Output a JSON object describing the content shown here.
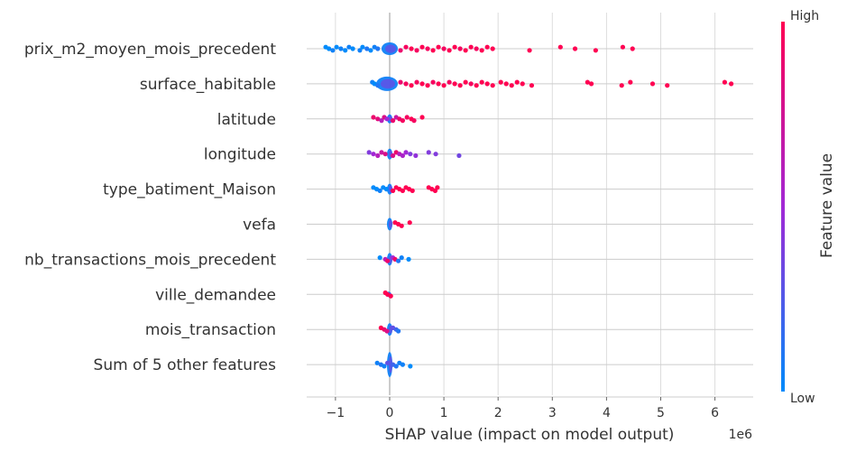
{
  "chart_data": {
    "type": "scatter",
    "subtype": "shap-beeswarm",
    "title": "",
    "xlabel": "SHAP value (impact on model output)",
    "x_offset_text": "1e6",
    "xlim": [
      -1.55,
      6.7
    ],
    "xticks": [
      -1,
      0,
      1,
      2,
      3,
      4,
      5,
      6
    ],
    "xtick_labels": [
      "−1",
      "0",
      "1",
      "2",
      "3",
      "4",
      "5",
      "6"
    ],
    "grid": true,
    "colorbar": {
      "label": "Feature value",
      "high_label": "High",
      "low_label": "Low",
      "high_color": "#ff0052",
      "low_color": "#008bfb"
    },
    "features": [
      {
        "name": "prix_m2_moyen_mois_precedent",
        "core_min": -0.15,
        "core_max": 0.15,
        "core_height": 14,
        "points": [
          {
            "x": -1.18,
            "v": 0.0
          },
          {
            "x": -1.12,
            "v": 0.0
          },
          {
            "x": -1.05,
            "v": 0.05
          },
          {
            "x": -0.98,
            "v": 0.0
          },
          {
            "x": -0.9,
            "v": 0.05
          },
          {
            "x": -0.82,
            "v": 0.0
          },
          {
            "x": -0.75,
            "v": 0.05
          },
          {
            "x": -0.68,
            "v": 0.0
          },
          {
            "x": -0.55,
            "v": 0.05
          },
          {
            "x": -0.5,
            "v": 0.0
          },
          {
            "x": -0.42,
            "v": 0.1
          },
          {
            "x": -0.35,
            "v": 0.0
          },
          {
            "x": -0.28,
            "v": 0.05
          },
          {
            "x": -0.22,
            "v": 0.1
          },
          {
            "x": 0.2,
            "v": 0.9
          },
          {
            "x": 0.3,
            "v": 0.95
          },
          {
            "x": 0.4,
            "v": 1.0
          },
          {
            "x": 0.5,
            "v": 0.95
          },
          {
            "x": 0.6,
            "v": 1.0
          },
          {
            "x": 0.7,
            "v": 0.95
          },
          {
            "x": 0.8,
            "v": 1.0
          },
          {
            "x": 0.9,
            "v": 1.0
          },
          {
            "x": 1.0,
            "v": 0.95
          },
          {
            "x": 1.1,
            "v": 1.0
          },
          {
            "x": 1.2,
            "v": 1.0
          },
          {
            "x": 1.3,
            "v": 0.95
          },
          {
            "x": 1.4,
            "v": 1.0
          },
          {
            "x": 1.5,
            "v": 1.0
          },
          {
            "x": 1.6,
            "v": 0.95
          },
          {
            "x": 1.7,
            "v": 1.0
          },
          {
            "x": 1.8,
            "v": 1.0
          },
          {
            "x": 1.9,
            "v": 1.0
          },
          {
            "x": 2.58,
            "v": 1.0
          },
          {
            "x": 3.15,
            "v": 1.0
          },
          {
            "x": 3.42,
            "v": 1.0
          },
          {
            "x": 3.8,
            "v": 1.0
          },
          {
            "x": 4.3,
            "v": 1.0
          },
          {
            "x": 4.48,
            "v": 1.0
          }
        ]
      },
      {
        "name": "surface_habitable",
        "core_min": -0.25,
        "core_max": 0.15,
        "core_height": 16,
        "points": [
          {
            "x": -0.32,
            "v": 0.05
          },
          {
            "x": -0.28,
            "v": 0.0
          },
          {
            "x": -0.22,
            "v": 0.1
          },
          {
            "x": 0.2,
            "v": 0.9
          },
          {
            "x": 0.3,
            "v": 0.95
          },
          {
            "x": 0.4,
            "v": 1.0
          },
          {
            "x": 0.5,
            "v": 0.95
          },
          {
            "x": 0.6,
            "v": 1.0
          },
          {
            "x": 0.7,
            "v": 1.0
          },
          {
            "x": 0.8,
            "v": 0.95
          },
          {
            "x": 0.9,
            "v": 1.0
          },
          {
            "x": 1.0,
            "v": 1.0
          },
          {
            "x": 1.1,
            "v": 0.95
          },
          {
            "x": 1.2,
            "v": 1.0
          },
          {
            "x": 1.3,
            "v": 1.0
          },
          {
            "x": 1.4,
            "v": 1.0
          },
          {
            "x": 1.5,
            "v": 0.95
          },
          {
            "x": 1.6,
            "v": 1.0
          },
          {
            "x": 1.7,
            "v": 1.0
          },
          {
            "x": 1.8,
            "v": 1.0
          },
          {
            "x": 1.9,
            "v": 1.0
          },
          {
            "x": 2.05,
            "v": 1.0
          },
          {
            "x": 2.15,
            "v": 1.0
          },
          {
            "x": 2.25,
            "v": 1.0
          },
          {
            "x": 2.35,
            "v": 1.0
          },
          {
            "x": 2.45,
            "v": 1.0
          },
          {
            "x": 2.62,
            "v": 1.0
          },
          {
            "x": 3.65,
            "v": 1.0
          },
          {
            "x": 3.72,
            "v": 1.0
          },
          {
            "x": 4.28,
            "v": 1.0
          },
          {
            "x": 4.44,
            "v": 1.0
          },
          {
            "x": 4.85,
            "v": 1.0
          },
          {
            "x": 5.12,
            "v": 1.0
          },
          {
            "x": 6.18,
            "v": 1.0
          },
          {
            "x": 6.3,
            "v": 1.0
          }
        ]
      },
      {
        "name": "latitude",
        "core_min": -0.03,
        "core_max": 0.03,
        "core_height": 10,
        "points": [
          {
            "x": -0.3,
            "v": 0.9
          },
          {
            "x": -0.22,
            "v": 0.85
          },
          {
            "x": -0.15,
            "v": 0.6
          },
          {
            "x": -0.1,
            "v": 0.8
          },
          {
            "x": -0.05,
            "v": 0.5
          },
          {
            "x": 0.06,
            "v": 0.9
          },
          {
            "x": 0.12,
            "v": 0.7
          },
          {
            "x": 0.18,
            "v": 0.9
          },
          {
            "x": 0.24,
            "v": 0.95
          },
          {
            "x": 0.32,
            "v": 0.95
          },
          {
            "x": 0.4,
            "v": 1.0
          },
          {
            "x": 0.45,
            "v": 0.95
          },
          {
            "x": 0.6,
            "v": 1.0
          }
        ]
      },
      {
        "name": "longitude",
        "core_min": -0.03,
        "core_max": 0.03,
        "core_height": 12,
        "points": [
          {
            "x": -0.38,
            "v": 0.4
          },
          {
            "x": -0.3,
            "v": 0.5
          },
          {
            "x": -0.22,
            "v": 0.6
          },
          {
            "x": -0.15,
            "v": 0.7
          },
          {
            "x": -0.08,
            "v": 0.8
          },
          {
            "x": 0.06,
            "v": 0.8
          },
          {
            "x": 0.12,
            "v": 0.9
          },
          {
            "x": 0.18,
            "v": 0.6
          },
          {
            "x": 0.24,
            "v": 0.55
          },
          {
            "x": 0.3,
            "v": 0.5
          },
          {
            "x": 0.38,
            "v": 0.4
          },
          {
            "x": 0.48,
            "v": 0.45
          },
          {
            "x": 0.72,
            "v": 0.4
          },
          {
            "x": 0.85,
            "v": 0.4
          },
          {
            "x": 1.28,
            "v": 0.35
          }
        ]
      },
      {
        "name": "type_batiment_Maison",
        "core_min": -0.02,
        "core_max": 0.02,
        "core_height": 12,
        "points": [
          {
            "x": -0.3,
            "v": 0.0
          },
          {
            "x": -0.24,
            "v": 0.0
          },
          {
            "x": -0.18,
            "v": 0.05
          },
          {
            "x": -0.12,
            "v": 0.0
          },
          {
            "x": -0.06,
            "v": 0.0
          },
          {
            "x": 0.06,
            "v": 1.0
          },
          {
            "x": 0.12,
            "v": 1.0
          },
          {
            "x": 0.18,
            "v": 1.0
          },
          {
            "x": 0.24,
            "v": 1.0
          },
          {
            "x": 0.3,
            "v": 1.0
          },
          {
            "x": 0.36,
            "v": 1.0
          },
          {
            "x": 0.42,
            "v": 1.0
          },
          {
            "x": 0.72,
            "v": 1.0
          },
          {
            "x": 0.78,
            "v": 1.0
          },
          {
            "x": 0.84,
            "v": 1.0
          },
          {
            "x": 0.88,
            "v": 1.0
          }
        ]
      },
      {
        "name": "vefa",
        "core_min": -0.02,
        "core_max": 0.02,
        "core_height": 14,
        "points": [
          {
            "x": 0.1,
            "v": 1.0
          },
          {
            "x": 0.16,
            "v": 1.0
          },
          {
            "x": 0.22,
            "v": 1.0
          },
          {
            "x": 0.37,
            "v": 1.0
          }
        ]
      },
      {
        "name": "nb_transactions_mois_precedent",
        "core_min": -0.03,
        "core_max": 0.03,
        "core_height": 14,
        "points": [
          {
            "x": -0.18,
            "v": 0.0
          },
          {
            "x": -0.08,
            "v": 0.6
          },
          {
            "x": -0.04,
            "v": 0.9
          },
          {
            "x": 0.06,
            "v": 0.5
          },
          {
            "x": 0.1,
            "v": 0.9
          },
          {
            "x": 0.16,
            "v": 0.1
          },
          {
            "x": 0.22,
            "v": 0.05
          },
          {
            "x": 0.35,
            "v": 0.0
          }
        ]
      },
      {
        "name": "ville_demandee",
        "core_min": -0.06,
        "core_max": 0.02,
        "core_height": 6,
        "points": [
          {
            "x": -0.08,
            "v": 1.0
          },
          {
            "x": -0.04,
            "v": 1.0
          },
          {
            "x": 0.02,
            "v": 1.0
          }
        ]
      },
      {
        "name": "mois_transaction",
        "core_min": -0.03,
        "core_max": 0.03,
        "core_height": 14,
        "points": [
          {
            "x": -0.16,
            "v": 1.0
          },
          {
            "x": -0.1,
            "v": 0.9
          },
          {
            "x": -0.05,
            "v": 0.8
          },
          {
            "x": 0.06,
            "v": 0.3
          },
          {
            "x": 0.12,
            "v": 0.2
          },
          {
            "x": 0.16,
            "v": 0.1
          }
        ]
      },
      {
        "name": "Sum of 5 other features",
        "core_min": -0.02,
        "core_max": 0.02,
        "core_height": 28,
        "points": [
          {
            "x": -0.23,
            "v": 0.05
          },
          {
            "x": -0.16,
            "v": 0.1
          },
          {
            "x": -0.1,
            "v": 0.05
          },
          {
            "x": -0.04,
            "v": 0.3
          },
          {
            "x": 0.06,
            "v": 0.2
          },
          {
            "x": 0.12,
            "v": 0.1
          },
          {
            "x": 0.18,
            "v": 0.05
          },
          {
            "x": 0.24,
            "v": 0.05
          },
          {
            "x": 0.38,
            "v": 0.0
          }
        ]
      }
    ]
  }
}
